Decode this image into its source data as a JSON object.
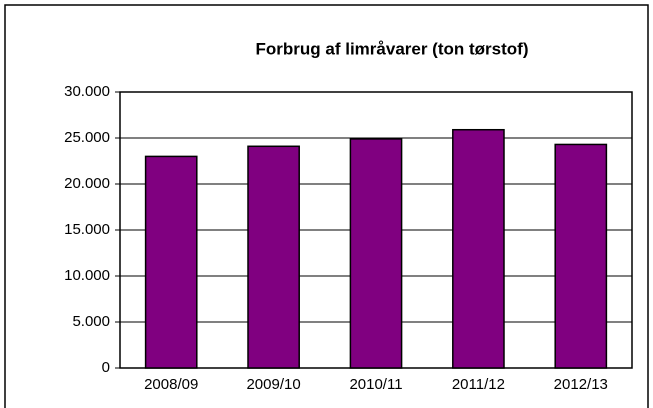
{
  "chart_data": {
    "type": "bar",
    "title": "Forbrug af limråvarer (ton tørstof)",
    "categories": [
      "2008/09",
      "2009/10",
      "2010/11",
      "2011/12",
      "2012/13"
    ],
    "values": [
      23000,
      24100,
      24900,
      25900,
      24300
    ],
    "color": "#800080",
    "ylim": [
      0,
      30000
    ],
    "yticks": [
      0,
      {
        "value": 5000,
        "label": "5.000"
      },
      {
        "value": 10000,
        "label": "10.000"
      },
      {
        "value": 15000,
        "label": "15.000"
      },
      {
        "value": 20000,
        "label": "20.000"
      },
      {
        "value": 25000,
        "label": "25.000"
      },
      {
        "value": 30000,
        "label": "30.000"
      }
    ],
    "grid": true
  }
}
